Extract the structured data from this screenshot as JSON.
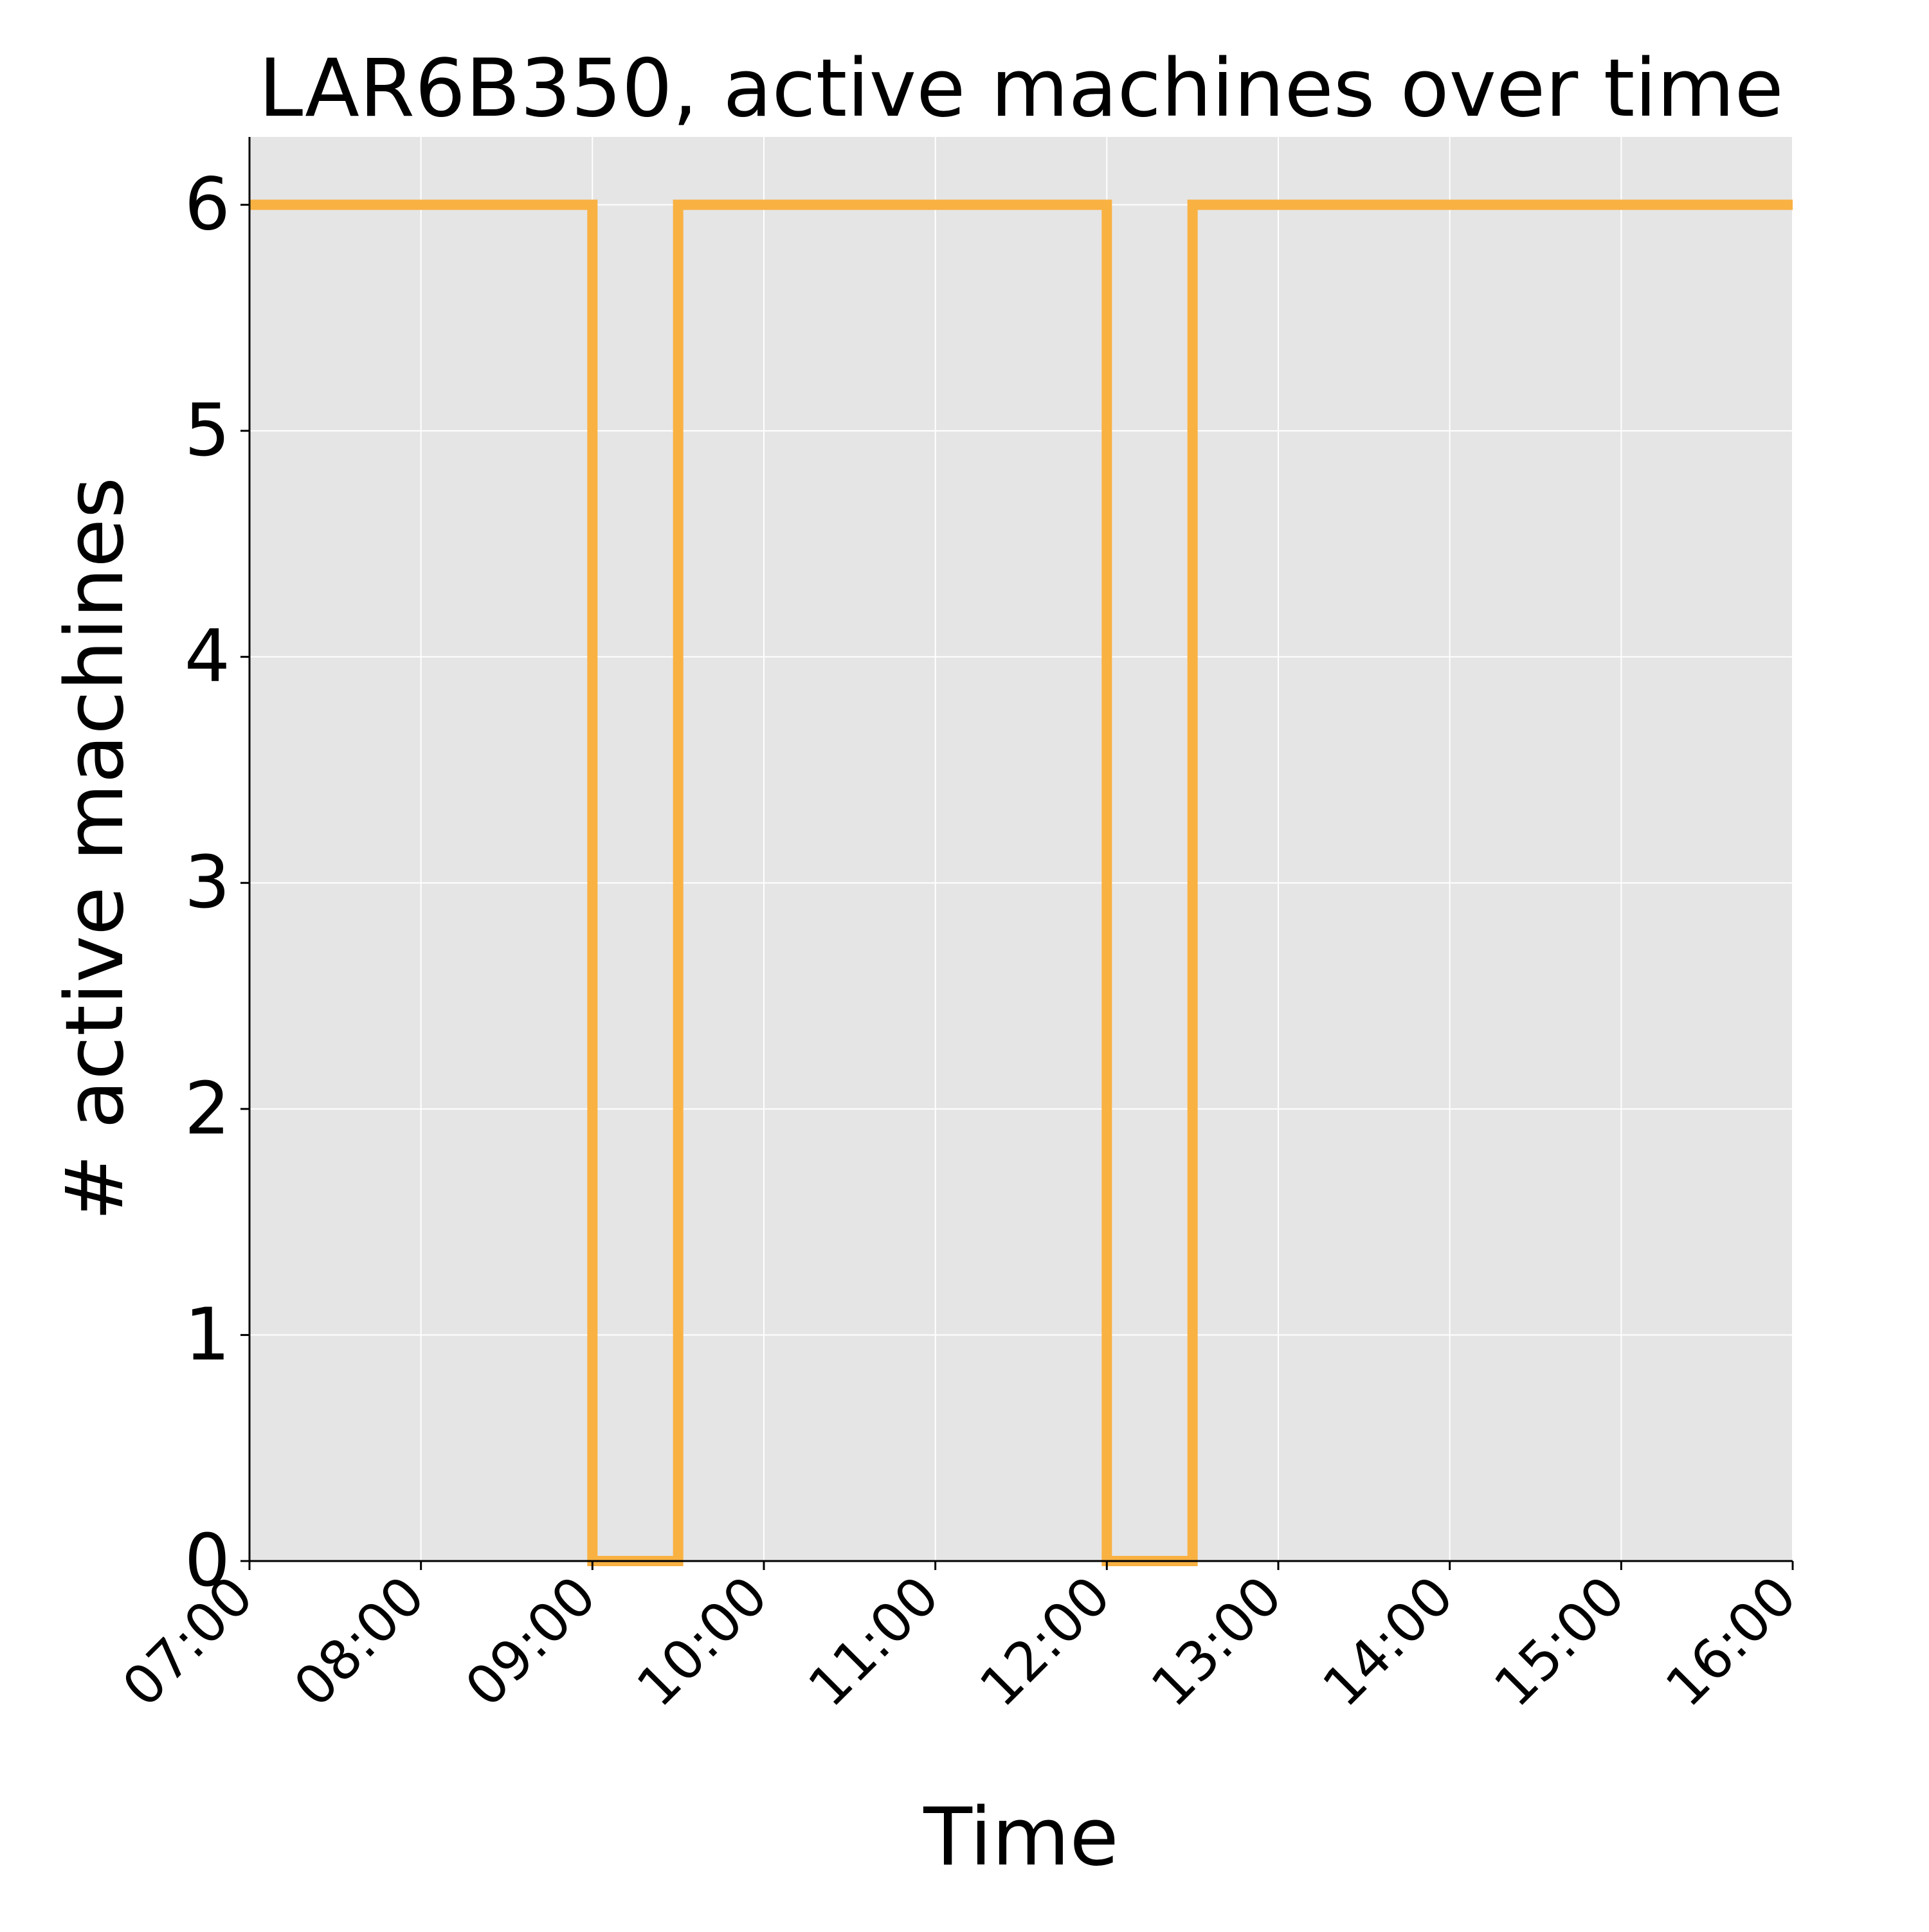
{
  "chart_data": {
    "type": "line",
    "step": true,
    "title": "LAR6B350, active machines over time",
    "xlabel": "Time",
    "ylabel": "# active machines",
    "x_ticks": [
      "07:00",
      "08:00",
      "09:00",
      "10:00",
      "11:00",
      "12:00",
      "13:00",
      "14:00",
      "15:00",
      "16:00"
    ],
    "y_ticks": [
      "0",
      "1",
      "2",
      "3",
      "4",
      "5",
      "6"
    ],
    "xlim": [
      "07:00",
      "16:00"
    ],
    "ylim": [
      0,
      6.3
    ],
    "grid": true,
    "colors": {
      "series": "#f9b142",
      "plot_background": "#e5e5e5",
      "grid": "#ffffff"
    },
    "series": [
      {
        "points": [
          {
            "x": "07:00",
            "y": 6
          },
          {
            "x": "09:00",
            "y": 0
          },
          {
            "x": "09:30",
            "y": 6
          },
          {
            "x": "12:00",
            "y": 0
          },
          {
            "x": "12:30",
            "y": 6
          },
          {
            "x": "16:00",
            "y": 6
          }
        ]
      }
    ]
  }
}
